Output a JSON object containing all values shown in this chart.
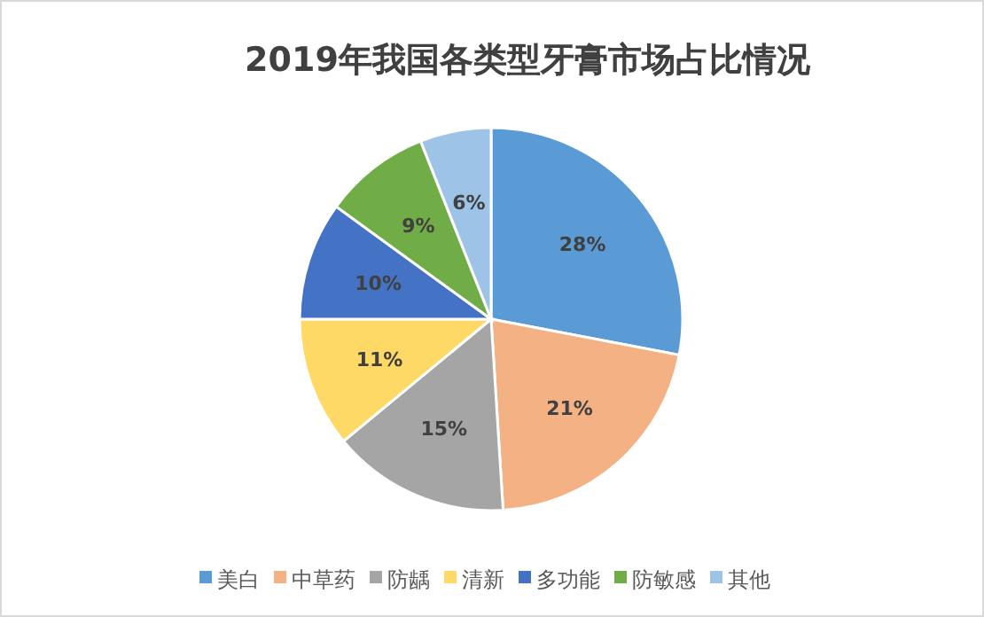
{
  "chart_data": {
    "type": "pie",
    "title": "2019年我国各类型牙膏市场占比情况",
    "categories": [
      "美白",
      "中草药",
      "防龋",
      "清新",
      "多功能",
      "防敏感",
      "其他"
    ],
    "values": [
      28,
      21,
      15,
      11,
      10,
      9,
      6
    ],
    "colors": [
      "#5b9bd5",
      "#f4b183",
      "#a5a5a5",
      "#ffd966",
      "#4472c4",
      "#70ad47",
      "#9dc3e6"
    ],
    "value_labels": [
      "28%",
      "21%",
      "15%",
      "11%",
      "10%",
      "9%",
      "6%"
    ],
    "legend": "bottom"
  }
}
